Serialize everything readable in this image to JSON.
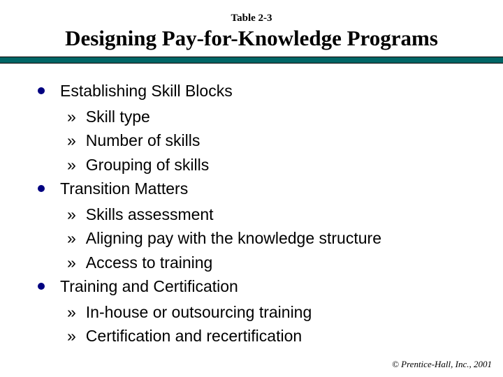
{
  "supertitle": "Table 2-3",
  "title": "Designing Pay-for-Knowledge Programs",
  "colors": {
    "rule_top": "#000000",
    "rule_mid": "#006666",
    "bullet": "#000080",
    "text": "#000000",
    "background": "#ffffff"
  },
  "typography": {
    "title_font": "Georgia/serif",
    "title_size_pt": 23,
    "supertitle_size_pt": 11,
    "body_font": "Arial/sans-serif",
    "body_size_pt": 17,
    "footer_font": "Georgia italic",
    "footer_size_pt": 10
  },
  "items": [
    {
      "label": "Establishing Skill Blocks",
      "subs": [
        "Skill type",
        "Number of skills",
        "Grouping of skills"
      ]
    },
    {
      "label": "Transition Matters",
      "subs": [
        "Skills assessment",
        "Aligning pay with the knowledge structure",
        "Access to training"
      ]
    },
    {
      "label": "Training and Certification",
      "subs": [
        "In-house or outsourcing training",
        "Certification and recertification"
      ]
    }
  ],
  "sub_bullet_glyph": "»",
  "footer": "© Prentice-Hall, Inc., 2001"
}
